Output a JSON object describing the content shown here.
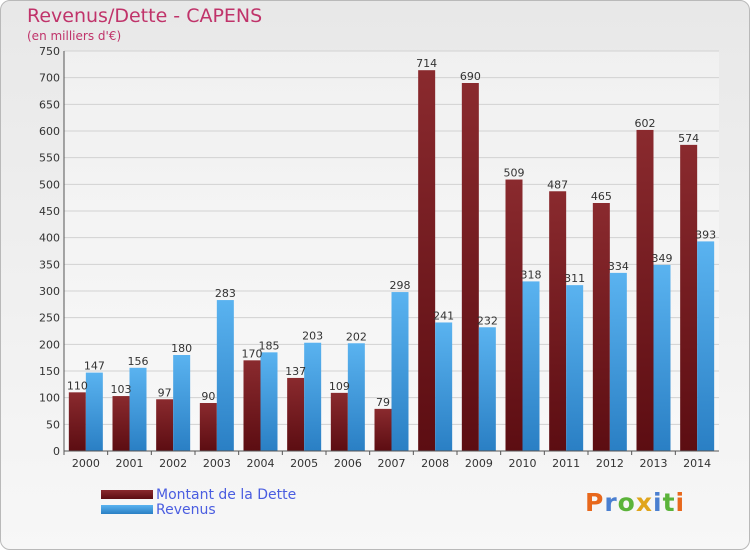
{
  "chart_data": {
    "type": "bar",
    "title": "Revenus/Dette - CAPENS",
    "subtitle": "(en milliers d'€)",
    "categories": [
      "2000",
      "2001",
      "2002",
      "2003",
      "2004",
      "2005",
      "2006",
      "2007",
      "2008",
      "2009",
      "2010",
      "2011",
      "2012",
      "2013",
      "2014"
    ],
    "series": [
      {
        "name": "Montant de la Dette",
        "color": "#7a1d22",
        "values": [
          110,
          103,
          97,
          90,
          170,
          137,
          109,
          79,
          714,
          690,
          509,
          487,
          465,
          602,
          574
        ]
      },
      {
        "name": "Revenus",
        "color": "#4ea6e6",
        "values": [
          147,
          156,
          180,
          283,
          185,
          203,
          202,
          298,
          241,
          232,
          318,
          311,
          334,
          349,
          393
        ]
      }
    ],
    "ylim": [
      0,
      750
    ],
    "yticks": [
      0,
      50,
      100,
      150,
      200,
      250,
      300,
      350,
      400,
      450,
      500,
      550,
      600,
      650,
      700,
      750
    ],
    "grid": true,
    "legend": "bottom-left"
  },
  "logo": {
    "letters": [
      {
        "char": "P",
        "color": "#e8681c"
      },
      {
        "char": "r",
        "color": "#4a7fd0"
      },
      {
        "char": "o",
        "color": "#5bb33a"
      },
      {
        "char": "x",
        "color": "#e0a51c"
      },
      {
        "char": "i",
        "color": "#4a7fd0"
      },
      {
        "char": "t",
        "color": "#5bb33a"
      },
      {
        "char": "i",
        "color": "#e8681c"
      }
    ]
  }
}
